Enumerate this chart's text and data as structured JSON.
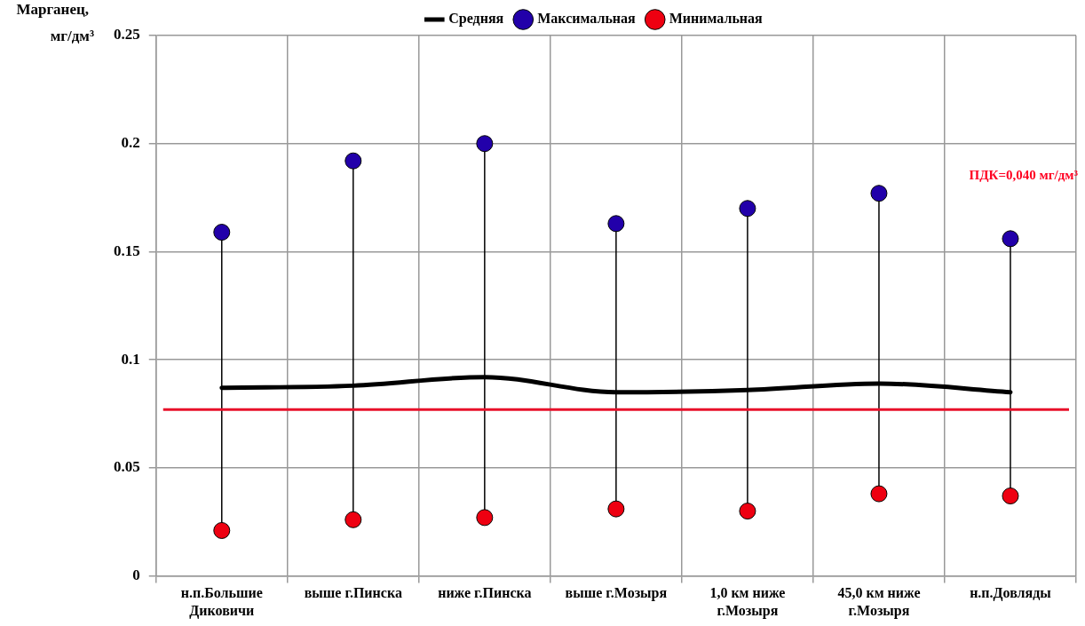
{
  "chart_data": {
    "type": "line",
    "ylabel": "Марганец, мг/дм³",
    "categories": [
      "н.п.Большие Диковичи",
      "выше г.Пинска",
      "ниже г.Пинска",
      "выше г.Мозыря",
      "1,0 км ниже г.Мозыря",
      "45,0 км ниже г.Мозыря",
      "н.п.Довляды"
    ],
    "series": [
      {
        "name": "Средняя",
        "marker": "none",
        "color": "#000000",
        "values": [
          0.087,
          0.088,
          0.092,
          0.085,
          0.086,
          0.089,
          0.085
        ]
      },
      {
        "name": "Максимальная",
        "type": "scatter",
        "marker": "circle",
        "color": "#2200aa",
        "values": [
          0.159,
          0.192,
          0.2,
          0.163,
          0.17,
          0.177,
          0.156
        ]
      },
      {
        "name": "Минимальная",
        "type": "scatter",
        "marker": "circle",
        "color": "#ee0011",
        "values": [
          0.021,
          0.026,
          0.027,
          0.031,
          0.03,
          0.038,
          0.037
        ]
      }
    ],
    "ref_lines": [
      {
        "axis": "y",
        "value": 0.077,
        "color": "#e8102a"
      }
    ],
    "annotations": [
      "ПДК=0,040 мг/дм³"
    ],
    "ylim": [
      0,
      0.25
    ],
    "yticks": [
      0,
      0.05,
      0.1,
      0.15,
      0.2,
      0.25
    ],
    "grid": true,
    "legend": "top"
  }
}
